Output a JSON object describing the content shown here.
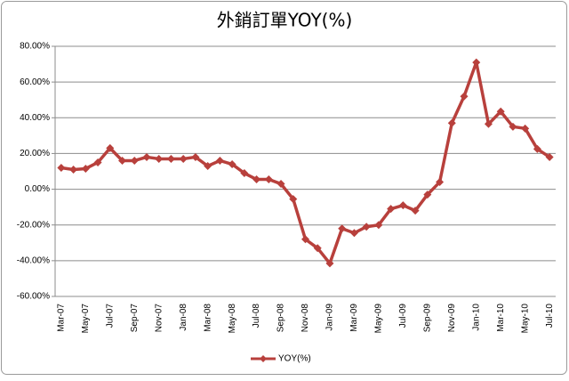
{
  "chart_data": {
    "type": "line",
    "title": "外銷訂單YOY(%)",
    "categories": [
      "Mar-07",
      null,
      "May-07",
      null,
      "Jul-07",
      null,
      "Sep-07",
      null,
      "Nov-07",
      null,
      "Jan-08",
      null,
      "Mar-08",
      null,
      "May-08",
      null,
      "Jul-08",
      null,
      "Sep-08",
      null,
      "Nov-08",
      null,
      "Jan-09",
      null,
      "Mar-09",
      null,
      "May-09",
      null,
      "Jul-09",
      null,
      "Sep-09",
      null,
      "Nov-09",
      null,
      "Jan-10",
      null,
      "Mar-10",
      null,
      "May-10",
      null,
      "Jul-10"
    ],
    "series": [
      {
        "name": "YOY(%)",
        "color": "#b8403c",
        "values": [
          12,
          11,
          11.5,
          15,
          23,
          16,
          16,
          18,
          17,
          17,
          17,
          18,
          13,
          16,
          14,
          9,
          5.5,
          5.5,
          3,
          -5.5,
          -28,
          -33,
          -41.5,
          -22,
          -24.5,
          -21,
          -20,
          -11,
          -9,
          -12,
          -3,
          4,
          37,
          52,
          71,
          36.5,
          43.5,
          35,
          34,
          22.5,
          18
        ]
      }
    ],
    "ylim": [
      -60,
      80
    ],
    "yticks": [
      {
        "value": -60,
        "label": "-60.00%"
      },
      {
        "value": -40,
        "label": "-40.00%"
      },
      {
        "value": -20,
        "label": "-20.00%"
      },
      {
        "value": 0,
        "label": "0.00%"
      },
      {
        "value": 20,
        "label": "20.00%"
      },
      {
        "value": 40,
        "label": "40.00%"
      },
      {
        "value": 60,
        "label": "60.00%"
      },
      {
        "value": 80,
        "label": "80.00%"
      }
    ],
    "grid": true,
    "legend": "bottom"
  }
}
